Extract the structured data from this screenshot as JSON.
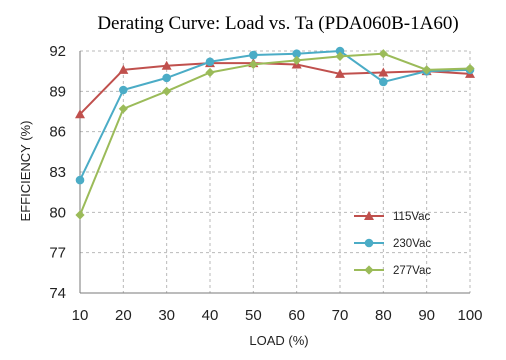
{
  "chart_data": {
    "type": "line",
    "title": "Derating Curve: Load vs. Ta (PDA060B-1A60)",
    "xlabel": "LOAD (%)",
    "ylabel": "EFFICIENCY (%)",
    "x": [
      10,
      20,
      30,
      40,
      50,
      60,
      70,
      80,
      90,
      100
    ],
    "xlim": [
      10,
      100
    ],
    "ylim": [
      74,
      92
    ],
    "yticks": [
      74,
      77,
      80,
      83,
      86,
      89,
      92
    ],
    "grid": true,
    "legend_position": "right",
    "series": [
      {
        "name": "115Vac",
        "color": "#c0504d",
        "marker": "triangle",
        "values": [
          87.3,
          90.6,
          90.9,
          91.1,
          91.1,
          91.0,
          90.3,
          90.4,
          90.5,
          90.3
        ]
      },
      {
        "name": "230Vac",
        "color": "#4bacc6",
        "marker": "circle",
        "values": [
          82.4,
          89.1,
          90.0,
          91.2,
          91.7,
          91.8,
          92.0,
          89.7,
          90.5,
          90.6
        ]
      },
      {
        "name": "277Vac",
        "color": "#9bbb59",
        "marker": "diamond",
        "values": [
          79.8,
          87.7,
          89.0,
          90.4,
          91.0,
          91.3,
          91.6,
          91.8,
          90.6,
          90.7
        ]
      }
    ]
  }
}
